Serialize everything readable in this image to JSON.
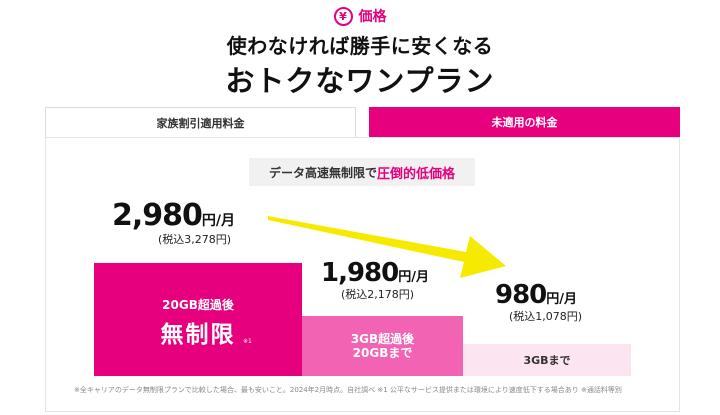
{
  "badge": {
    "icon": "yen-icon",
    "label": "価格"
  },
  "headline": {
    "line1": "使わなければ勝手に安くなる",
    "line2": "おトクなワンプラン"
  },
  "tabs": [
    {
      "label": "家族割引適用料金",
      "active": false
    },
    {
      "label": "未適用の料金",
      "active": true
    }
  ],
  "tag": {
    "prefix": "データ高速無制限で",
    "emphasis": "圧倒的低価格"
  },
  "prices": [
    {
      "amount": "2,980",
      "unit": "円/月",
      "tax": "(税込3,278円)"
    },
    {
      "amount": "1,980",
      "unit": "円/月",
      "tax": "(税込2,178円)"
    },
    {
      "amount": "980",
      "unit": "円/月",
      "tax": "(税込1,078円)"
    }
  ],
  "bars": [
    {
      "line1": "20GB超過後",
      "line2": "無制限",
      "note": "※1"
    },
    {
      "line1": "3GB超過後",
      "line2": "20GBまで"
    },
    {
      "line1": "3GBまで"
    }
  ],
  "footnote": "※全キャリアのデータ無制限プランで比較した場合、最も安いこと。2024年2月時点。自社調べ ※1 公平なサービス提供または環境により速度低下する場合あり ※通話料等別",
  "colors": {
    "brand": "#e6007e",
    "mid": "#f263b4",
    "light": "#fde4f1",
    "arrow": "#f5ea00"
  }
}
